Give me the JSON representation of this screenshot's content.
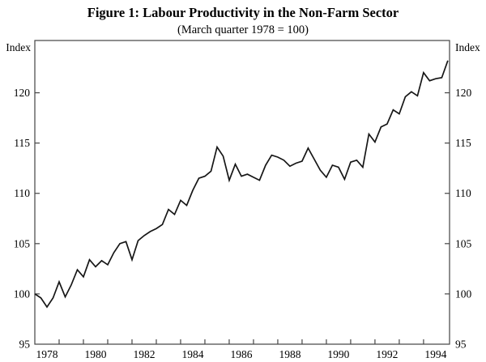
{
  "chart_data": {
    "type": "line",
    "title": "Figure 1: Labour Productivity in the Non-Farm Sector",
    "subtitle": "(March quarter 1978 = 100)",
    "y_axis_label": "Index",
    "y_ticks": [
      95,
      100,
      105,
      110,
      115,
      120
    ],
    "ylim": [
      95,
      125.2
    ],
    "xlim": [
      1978,
      1995.07
    ],
    "x_year_ticks": [
      1979,
      1980,
      1981,
      1982,
      1983,
      1984,
      1985,
      1986,
      1987,
      1988,
      1989,
      1990,
      1991,
      1992,
      1993,
      1994
    ],
    "x_tick_labels": [
      "1978",
      "1980",
      "1982",
      "1984",
      "1986",
      "1988",
      "1990",
      "1992",
      "1994"
    ],
    "grid": false,
    "legend": false,
    "line_color": "#161616",
    "series": [
      {
        "name": "Labour productivity index, non-farm sector",
        "frequency": "quarterly",
        "start_year": 1978,
        "start_quarter": 1,
        "values": [
          100.0,
          99.6,
          98.7,
          99.6,
          101.2,
          99.7,
          100.9,
          102.4,
          101.7,
          103.4,
          102.7,
          103.3,
          102.9,
          104.1,
          105.0,
          105.2,
          103.4,
          105.3,
          105.8,
          106.2,
          106.5,
          106.9,
          108.4,
          107.9,
          109.3,
          108.8,
          110.3,
          111.5,
          111.7,
          112.2,
          114.6,
          113.7,
          111.3,
          112.9,
          111.7,
          111.9,
          111.6,
          111.3,
          112.8,
          113.8,
          113.6,
          113.3,
          112.7,
          113.0,
          113.2,
          114.5,
          113.4,
          112.3,
          111.6,
          112.8,
          112.6,
          111.4,
          113.1,
          113.3,
          112.6,
          115.9,
          115.1,
          116.6,
          116.9,
          118.3,
          117.9,
          119.6,
          120.1,
          119.7,
          122.0,
          121.2,
          121.4,
          121.5,
          123.2
        ]
      }
    ]
  }
}
